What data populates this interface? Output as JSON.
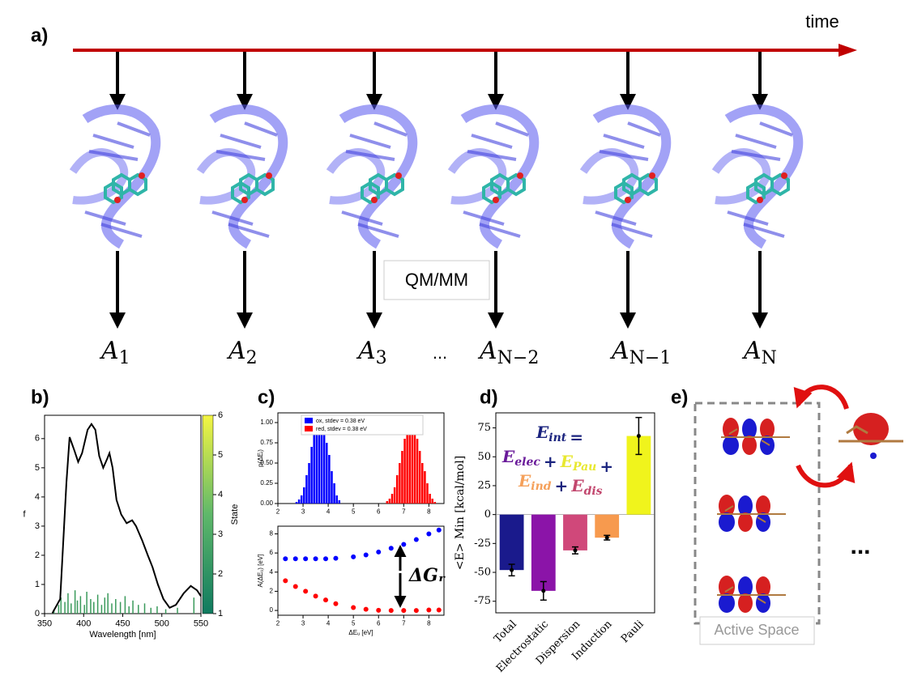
{
  "panel_a": {
    "label": "a)",
    "time_label": "time",
    "qmmm_label": "QM/MM",
    "ellipsis": "...",
    "frames": [
      {
        "symbol": "A",
        "sub": "1"
      },
      {
        "symbol": "A",
        "sub": "2"
      },
      {
        "symbol": "A",
        "sub": "3"
      },
      {
        "symbol": "A",
        "sub": "N−2"
      },
      {
        "symbol": "A",
        "sub": "N−1"
      },
      {
        "symbol": "A",
        "sub": "N"
      }
    ]
  },
  "panel_e": {
    "label": "e)",
    "caption": "Active Space",
    "ellipsis": "..."
  },
  "chart_data": [
    {
      "type": "spectrum",
      "label": "b)",
      "xlabel": "Wavelength [nm]",
      "ylabel": "f",
      "xlim": [
        350,
        550
      ],
      "xticks": [
        350,
        400,
        450,
        500,
        550
      ],
      "ylim": [
        0,
        6.8
      ],
      "yticks": [
        0,
        1,
        2,
        3,
        4,
        5,
        6
      ],
      "series": [
        {
          "color": "#000000",
          "x": [
            360,
            370,
            378,
            382,
            388,
            393,
            398,
            405,
            410,
            415,
            420,
            425,
            430,
            433,
            437,
            442,
            448,
            455,
            462,
            467,
            475,
            482,
            488,
            495,
            502,
            510,
            518,
            528,
            537,
            545,
            550
          ],
          "values": [
            0.02,
            0.5,
            4.5,
            6.05,
            5.6,
            5.2,
            5.5,
            6.3,
            6.5,
            6.3,
            5.4,
            5.0,
            5.3,
            5.5,
            5.0,
            3.9,
            3.4,
            3.1,
            3.2,
            3.0,
            2.5,
            2.0,
            1.6,
            1.0,
            0.5,
            0.2,
            0.3,
            0.7,
            0.95,
            0.8,
            0.6
          ]
        }
      ],
      "sticks": {
        "color": "#3a9a5b",
        "x": [
          362,
          368,
          371,
          376,
          380,
          384,
          389,
          392,
          396,
          401,
          404,
          409,
          413,
          418,
          423,
          427,
          431,
          436,
          441,
          447,
          453,
          458,
          463,
          470,
          478,
          486,
          494,
          505,
          520,
          541
        ],
        "values": [
          0.15,
          0.3,
          0.55,
          0.4,
          0.7,
          0.35,
          0.8,
          0.45,
          0.6,
          0.3,
          0.75,
          0.5,
          0.4,
          0.65,
          0.3,
          0.55,
          0.7,
          0.35,
          0.5,
          0.4,
          0.6,
          0.25,
          0.45,
          0.3,
          0.35,
          0.2,
          0.25,
          0.15,
          0.2,
          0.55
        ]
      },
      "colorbar": {
        "label": "State",
        "lim": [
          1,
          6
        ],
        "ticks": [
          1,
          2,
          3,
          4,
          5,
          6
        ],
        "colors": [
          "#0f7a5f",
          "#5fb86a",
          "#f4f542"
        ]
      }
    },
    {
      "type": "histogram",
      "label": "c)",
      "ylabel": "p(ΔEᵢ)",
      "xlim": [
        2,
        8.6
      ],
      "xticks": [
        2,
        3,
        4,
        5,
        6,
        7,
        8
      ],
      "ylim": [
        0,
        1.12
      ],
      "yticks": [
        {
          "value": 0,
          "label": "0.00"
        },
        {
          "value": 0.25,
          "label": "0.25"
        },
        {
          "value": 0.5,
          "label": "0.50"
        },
        {
          "value": 0.75,
          "label": "0.75"
        },
        {
          "value": 1,
          "label": "1.00"
        }
      ],
      "series": [
        {
          "name": "ox, stdev = 0.38 eV",
          "color": "#0000ff",
          "bins": [
            2.7,
            2.8,
            2.9,
            3.0,
            3.1,
            3.2,
            3.3,
            3.4,
            3.5,
            3.6,
            3.7,
            3.8,
            3.9,
            4.0,
            4.1,
            4.2,
            4.3,
            4.4,
            4.5
          ],
          "values": [
            0.02,
            0.05,
            0.1,
            0.2,
            0.35,
            0.5,
            0.7,
            0.85,
            0.93,
            0.97,
            1.0,
            0.9,
            0.75,
            0.6,
            0.4,
            0.25,
            0.1,
            0.04
          ]
        },
        {
          "name": "red, stdev = 0.38 eV",
          "color": "#ff0000",
          "bins": [
            6.3,
            6.4,
            6.5,
            6.6,
            6.7,
            6.8,
            6.9,
            7.0,
            7.1,
            7.2,
            7.3,
            7.4,
            7.5,
            7.6,
            7.7,
            7.8,
            7.9,
            8.0,
            8.1,
            8.2,
            8.3
          ],
          "values": [
            0.03,
            0.06,
            0.12,
            0.2,
            0.35,
            0.5,
            0.65,
            0.8,
            0.9,
            1.05,
            0.95,
            0.95,
            0.8,
            0.65,
            0.5,
            0.4,
            0.25,
            0.12,
            0.06,
            0.02
          ]
        }
      ]
    },
    {
      "type": "scatter",
      "xlabel": "ΔEᵤ [eV]",
      "ylabel": "A(ΔEᵤ) [eV]",
      "annotation": "ΔGᵣ",
      "xlim": [
        2,
        8.6
      ],
      "xticks": [
        2,
        3,
        4,
        5,
        6,
        7,
        8
      ],
      "ylim": [
        -0.5,
        8.8
      ],
      "yticks": [
        0,
        2,
        4,
        6,
        8
      ],
      "series": [
        {
          "color": "#0000ff",
          "x": [
            2.3,
            2.7,
            3.1,
            3.5,
            3.9,
            4.3,
            5.0,
            5.5,
            6.0,
            6.5,
            7.0,
            7.5,
            8.0,
            8.4
          ],
          "values": [
            5.4,
            5.4,
            5.4,
            5.4,
            5.4,
            5.45,
            5.6,
            5.8,
            6.1,
            6.5,
            6.9,
            7.4,
            8.0,
            8.4
          ]
        },
        {
          "color": "#ff0000",
          "x": [
            2.3,
            2.7,
            3.1,
            3.5,
            3.9,
            4.3,
            5.0,
            5.5,
            6.0,
            6.5,
            7.0,
            7.5,
            8.0,
            8.4
          ],
          "values": [
            3.1,
            2.5,
            2.0,
            1.5,
            1.1,
            0.7,
            0.3,
            0.12,
            0.02,
            0.0,
            0.0,
            0.0,
            0.05,
            0.05
          ]
        }
      ]
    },
    {
      "type": "bar",
      "label": "d)",
      "ylabel": "<E> Min [kcal/mol]",
      "categories": [
        "Total",
        "Electrostatic",
        "Dispersion",
        "Induction",
        "Pauli"
      ],
      "values": [
        -48,
        -66,
        -31,
        -20,
        68
      ],
      "errors": [
        5,
        8,
        3,
        2,
        16
      ],
      "colors": [
        "#1a1a8c",
        "#8b14a8",
        "#d0487a",
        "#f79a4e",
        "#f0f41c"
      ],
      "ylim": [
        -85,
        88
      ],
      "yticks": [
        -75,
        -50,
        -25,
        0,
        25,
        50,
        75
      ],
      "equation": [
        [
          {
            "text": "E",
            "sub": "int",
            "color": "#1a237e"
          },
          {
            "text": "=",
            "color": "#1a237e"
          }
        ],
        [
          {
            "text": "E",
            "sub": "elec",
            "color": "#6a1b9a"
          },
          {
            "text": "+",
            "color": "#1a237e"
          },
          {
            "text": "E",
            "sub": "Pau",
            "color": "#e8e830"
          },
          {
            "text": "+",
            "color": "#1a237e"
          }
        ],
        [
          {
            "text": "E",
            "sub": "ind",
            "color": "#f5a05a"
          },
          {
            "text": "+",
            "color": "#1a237e"
          },
          {
            "text": "E",
            "sub": "dis",
            "color": "#c2476e"
          }
        ]
      ]
    }
  ]
}
